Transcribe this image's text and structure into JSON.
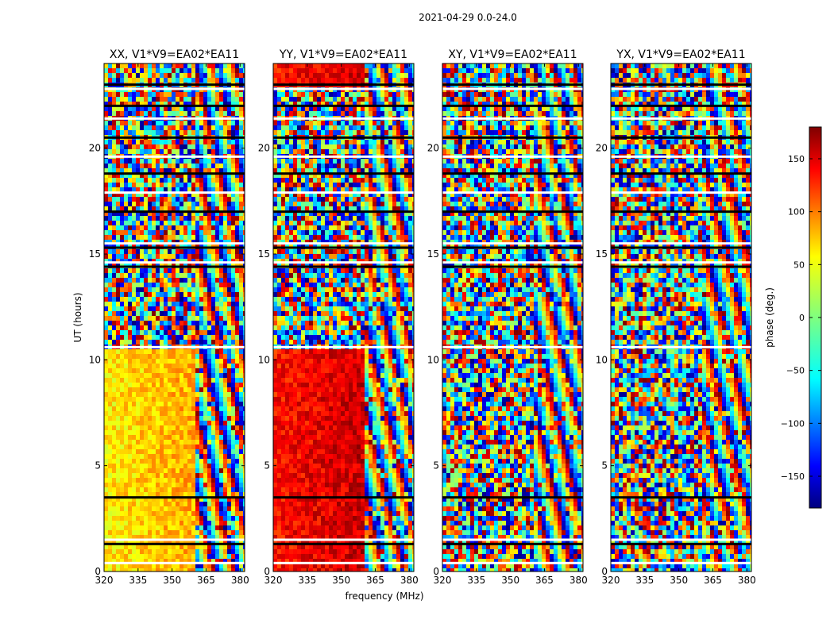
{
  "figure_title": "2021-04-29 0.0-24.0",
  "chart_data": {
    "type": "heatmap",
    "ylabel": "UT (hours)",
    "xlabel": "frequency (MHz)",
    "xlim": [
      320,
      382
    ],
    "ylim": [
      0,
      24
    ],
    "x_ticks": [
      320,
      335,
      350,
      365,
      380
    ],
    "y_ticks": [
      0,
      5,
      10,
      15,
      20
    ],
    "panels": [
      {
        "title": "XX, V1*V9=EA02*EA11",
        "pol": "XX",
        "coherent_phase_deg": 50,
        "coherent_hours": [
          [
            0.0,
            10.5
          ]
        ],
        "noise_hours": [
          [
            10.7,
            24.0
          ]
        ]
      },
      {
        "title": "YY, V1*V9=EA02*EA11",
        "pol": "YY",
        "coherent_phase_deg": 130,
        "coherent_hours": [
          [
            0.0,
            10.5
          ],
          [
            22.8,
            24.0
          ]
        ],
        "noise_hours": [
          [
            10.7,
            22.8
          ]
        ]
      },
      {
        "title": "XY, V1*V9=EA02*EA11",
        "pol": "XY",
        "coherent_phase_deg": null,
        "coherent_hours": [],
        "noise_hours": [
          [
            0.0,
            24.0
          ]
        ]
      },
      {
        "title": "YX, V1*V9=EA02*EA11",
        "pol": "YX",
        "coherent_phase_deg": null,
        "coherent_hours": [],
        "noise_hours": [
          [
            0.0,
            24.0
          ]
        ]
      }
    ],
    "fringe_region_mhz": [
      360,
      382
    ],
    "gap_hours": [
      0.4,
      1.3,
      1.5,
      3.5,
      10.6,
      14.4,
      14.6,
      15.3,
      15.5,
      17.0,
      17.9,
      18.8,
      19.6,
      20.5,
      21.4,
      22.0,
      22.8,
      23.0
    ],
    "colorbar": {
      "label": "phase (deg.)",
      "range": [
        -180,
        180
      ],
      "ticks": [
        150,
        100,
        50,
        0,
        -50,
        -100,
        -150
      ],
      "tick_labels": [
        "150",
        "100",
        "50",
        "0",
        "−50",
        "−100",
        "−150"
      ],
      "colormap": "jet"
    }
  }
}
